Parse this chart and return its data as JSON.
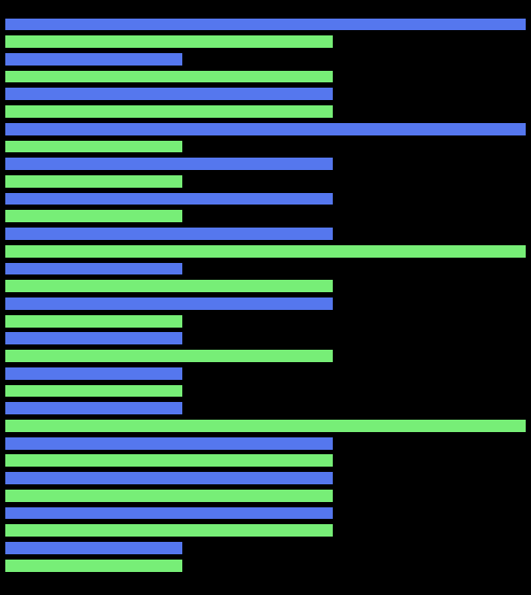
{
  "blue_color": "#5577ee",
  "green_color": "#77ee77",
  "background_color": "#000000",
  "figsize": [
    6.0,
    6.72
  ],
  "dpi": 100,
  "bar_sequence": [
    {
      "color": "blue",
      "val": 100
    },
    {
      "color": "green",
      "val": 63
    },
    {
      "color": "blue",
      "val": 34
    },
    {
      "color": "green",
      "val": 63
    },
    {
      "color": "blue",
      "val": 63
    },
    {
      "color": "green",
      "val": 63
    },
    {
      "color": "blue",
      "val": 100
    },
    {
      "color": "green",
      "val": 34
    },
    {
      "color": "blue",
      "val": 63
    },
    {
      "color": "green",
      "val": 34
    },
    {
      "color": "blue",
      "val": 63
    },
    {
      "color": "green",
      "val": 34
    },
    {
      "color": "blue",
      "val": 63
    },
    {
      "color": "green",
      "val": 100
    },
    {
      "color": "blue",
      "val": 34
    },
    {
      "color": "green",
      "val": 63
    },
    {
      "color": "blue",
      "val": 63
    },
    {
      "color": "green",
      "val": 34
    },
    {
      "color": "blue",
      "val": 34
    },
    {
      "color": "green",
      "val": 63
    },
    {
      "color": "blue",
      "val": 34
    },
    {
      "color": "green",
      "val": 34
    },
    {
      "color": "blue",
      "val": 34
    },
    {
      "color": "green",
      "val": 100
    },
    {
      "color": "blue",
      "val": 63
    },
    {
      "color": "green",
      "val": 63
    },
    {
      "color": "blue",
      "val": 63
    },
    {
      "color": "green",
      "val": 63
    },
    {
      "color": "blue",
      "val": 63
    },
    {
      "color": "green",
      "val": 63
    },
    {
      "color": "blue",
      "val": 34
    },
    {
      "color": "green",
      "val": 34
    }
  ]
}
